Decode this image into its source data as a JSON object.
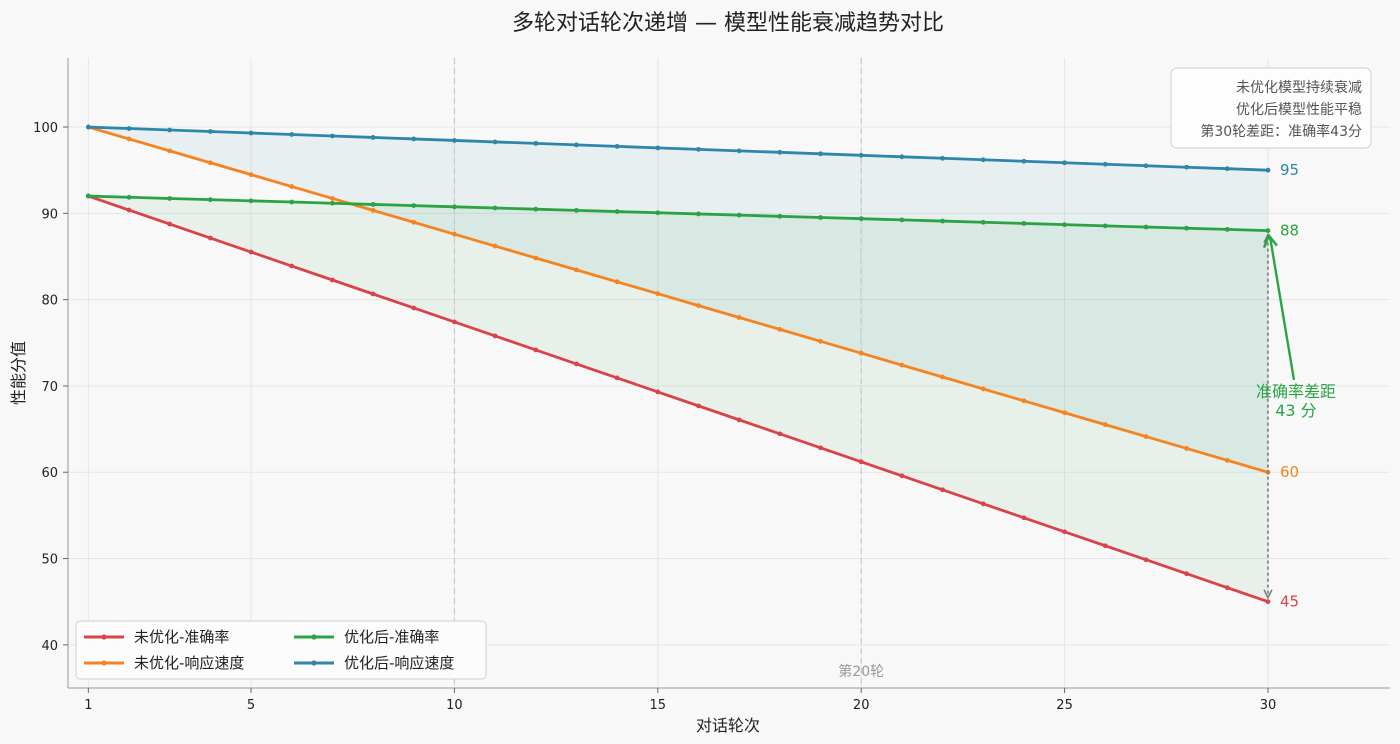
{
  "chart_data": {
    "type": "line",
    "title": "多轮对话轮次递增 — 模型性能衰减趋势对比",
    "xlabel": "对话轮次",
    "ylabel": "性能分值",
    "xlim": [
      0.5,
      33
    ],
    "ylim": [
      35,
      108
    ],
    "xticks": [
      1,
      5,
      10,
      15,
      20,
      25,
      30
    ],
    "yticks": [
      40,
      50,
      60,
      70,
      80,
      90,
      100
    ],
    "grid": true,
    "legend_position": "lower-left",
    "series": [
      {
        "key": "unopt_acc",
        "name": "未优化-准确率",
        "color": "#d9434b",
        "start": 92,
        "end": 45,
        "end_label": "45"
      },
      {
        "key": "unopt_speed",
        "name": "未优化-响应速度",
        "color": "#f5831f",
        "start": 100,
        "end": 60,
        "end_label": "60"
      },
      {
        "key": "opt_acc",
        "name": "优化后-准确率",
        "color": "#2ba345",
        "start": 92,
        "end": 88,
        "end_label": "88"
      },
      {
        "key": "opt_speed",
        "name": "优化后-响应速度",
        "color": "#2e86ab",
        "start": 100,
        "end": 95,
        "end_label": "95"
      }
    ],
    "x_start": 1,
    "x_end": 30,
    "vlines": [
      10,
      20
    ],
    "vline_label": "第20轮",
    "annotation": {
      "text_line1": "准确率差距",
      "text_line2": "43 分",
      "x": 30,
      "from": 45,
      "to": 88,
      "color": "#2ba345"
    },
    "note_box": [
      "未优化模型持续衰减",
      "优化后模型性能平稳",
      "第30轮差距：准确率43分"
    ]
  }
}
